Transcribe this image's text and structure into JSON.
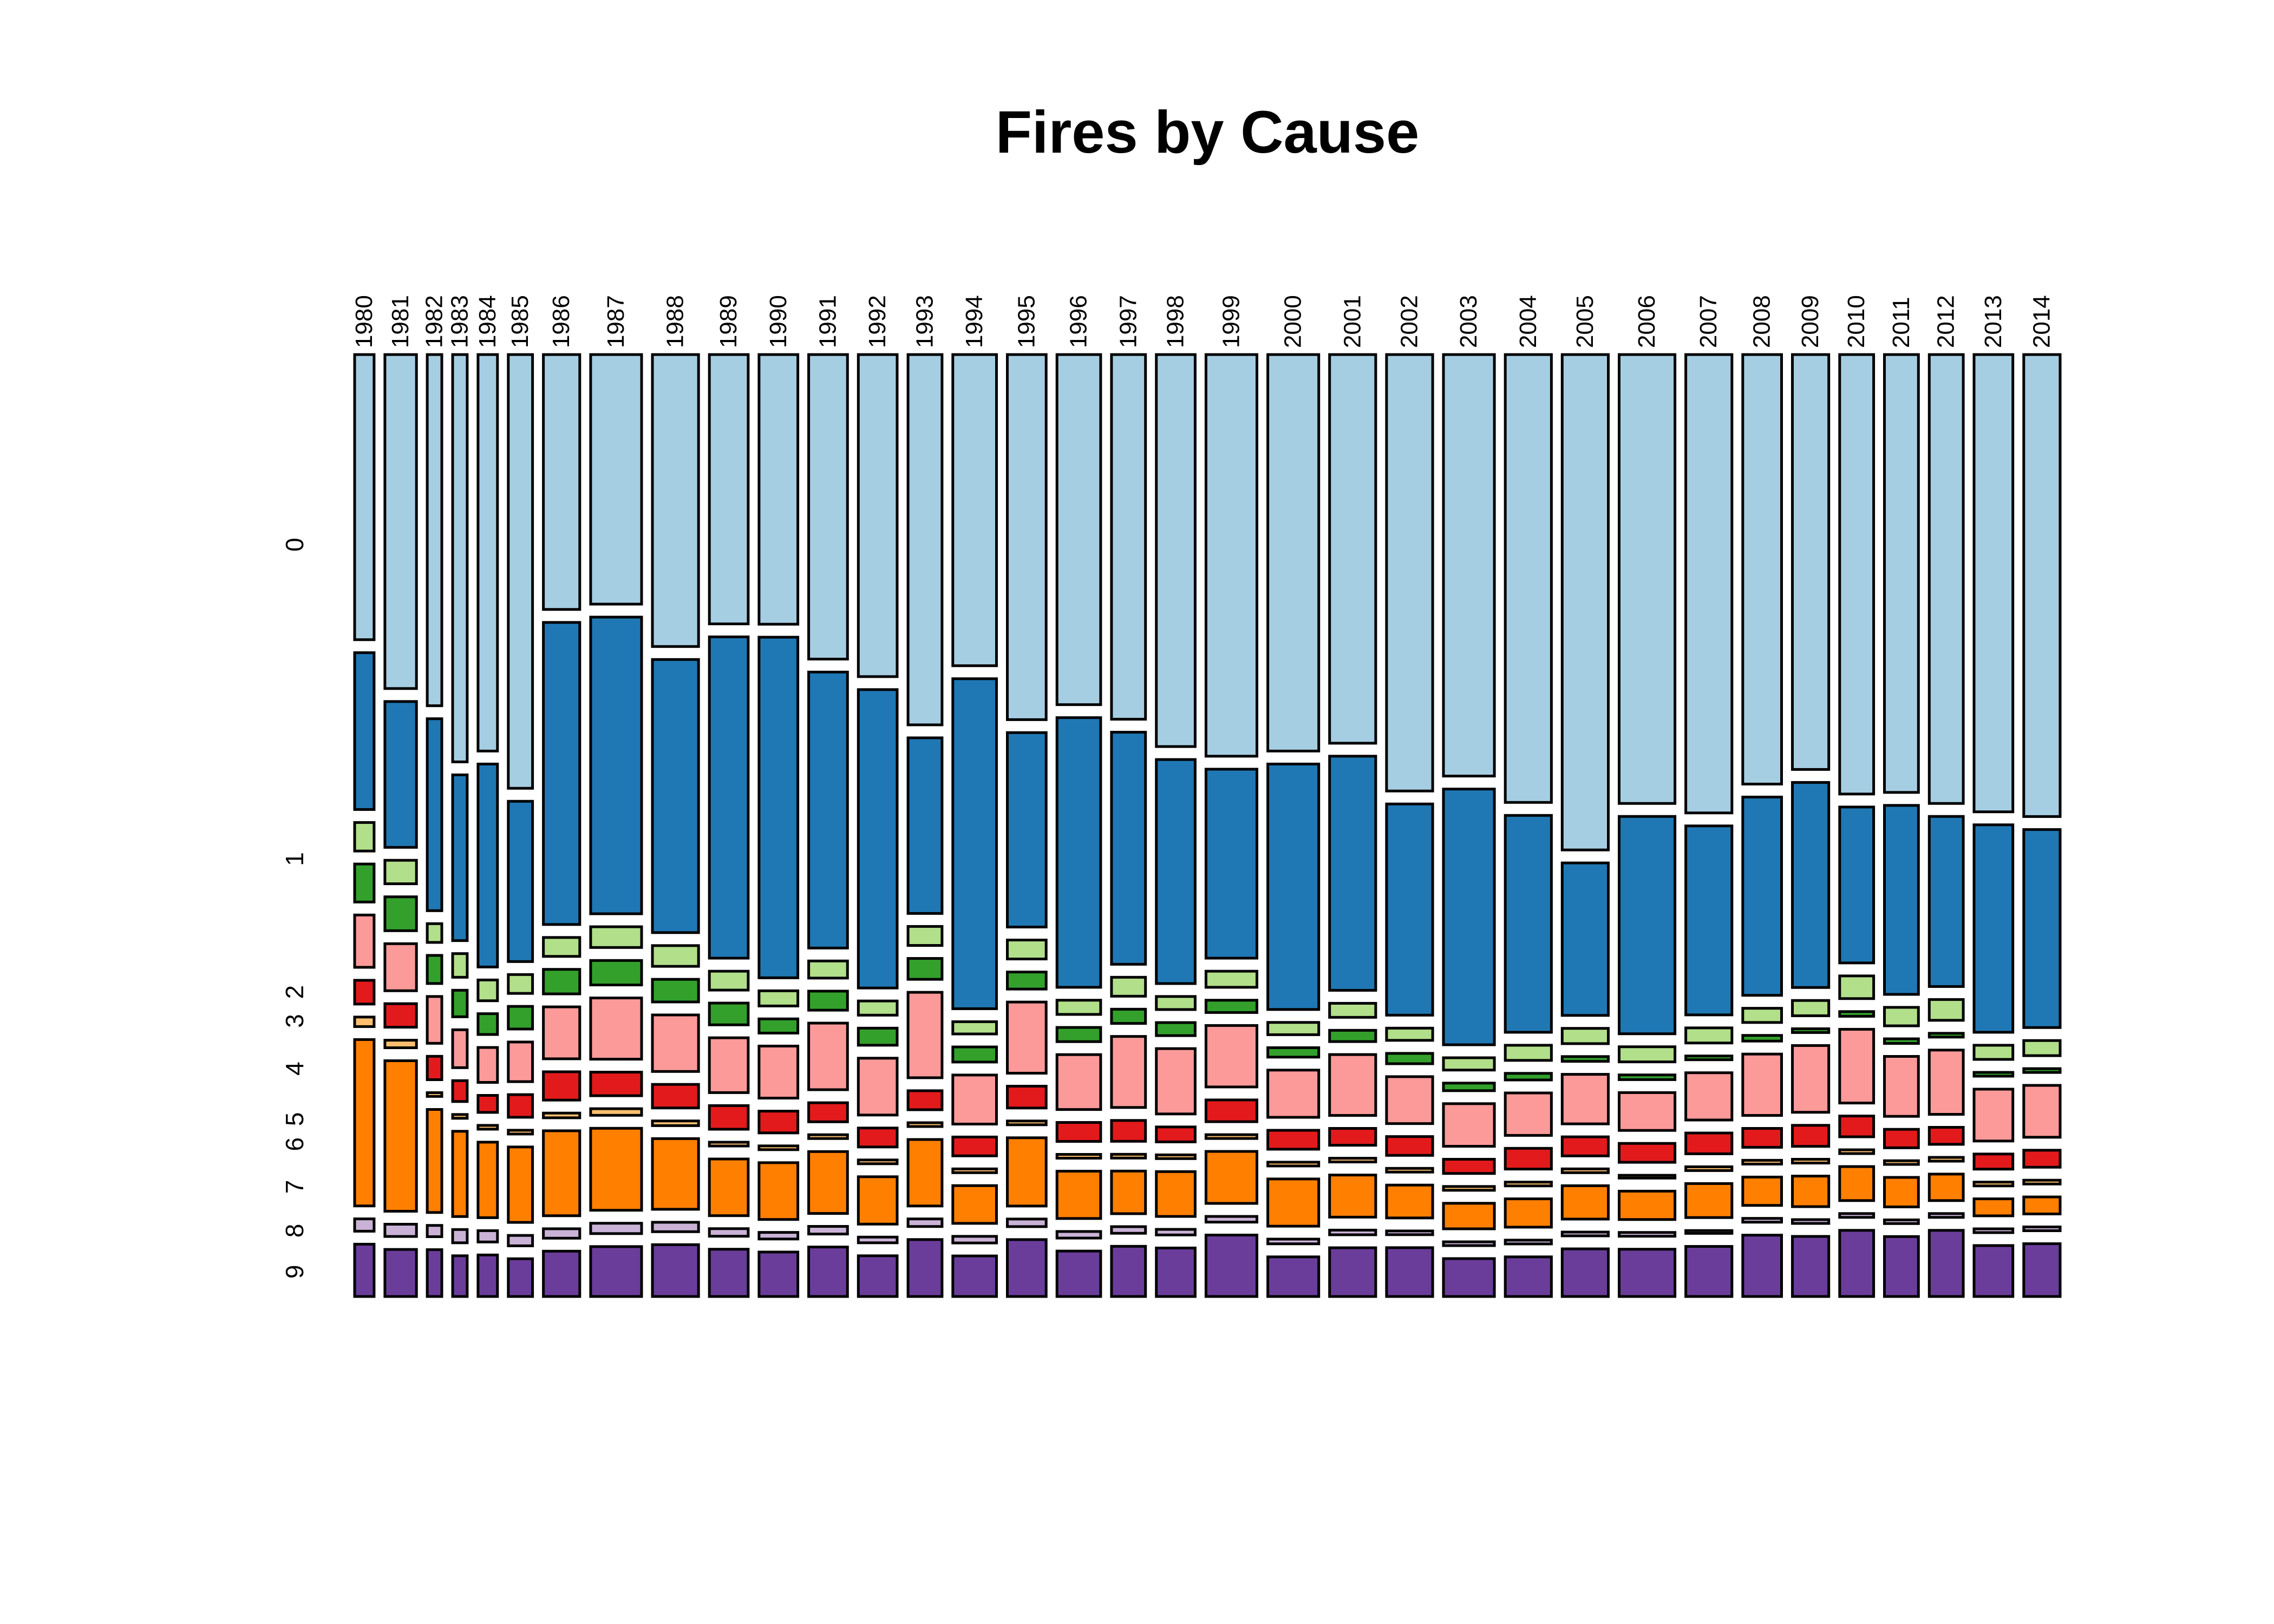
{
  "chart_data": {
    "type": "mosaic",
    "title": "Fires by Cause",
    "categories": [
      "1980",
      "1981",
      "1982",
      "1983",
      "1984",
      "1985",
      "1986",
      "1987",
      "1988",
      "1989",
      "1990",
      "1991",
      "1992",
      "1993",
      "1994",
      "1995",
      "1996",
      "1997",
      "1998",
      "1999",
      "2000",
      "2001",
      "2002",
      "2003",
      "2004",
      "2005",
      "2006",
      "2007",
      "2008",
      "2009",
      "2010",
      "2011",
      "2012",
      "2013",
      "2014"
    ],
    "column_widths": [
      0.8,
      1.3,
      0.6,
      0.6,
      0.8,
      1.0,
      1.5,
      2.1,
      1.9,
      1.6,
      1.6,
      1.6,
      1.6,
      1.4,
      1.8,
      1.6,
      1.8,
      1.4,
      1.6,
      2.1,
      2.1,
      1.9,
      1.9,
      2.1,
      1.9,
      1.9,
      2.3,
      1.9,
      1.6,
      1.5,
      1.4,
      1.4,
      1.4,
      1.6,
      1.5
    ],
    "series": [
      {
        "name": "0",
        "color": "#a6cee3",
        "values": [
          0.3,
          0.355,
          0.375,
          0.43,
          0.42,
          0.46,
          0.27,
          0.265,
          0.31,
          0.285,
          0.285,
          0.32,
          0.34,
          0.39,
          0.33,
          0.385,
          0.37,
          0.385,
          0.42,
          0.425,
          0.42,
          0.415,
          0.465,
          0.445,
          0.475,
          0.52,
          0.475,
          0.485,
          0.455,
          0.435,
          0.465,
          0.475,
          0.475,
          0.485,
          0.49
        ]
      },
      {
        "name": "1",
        "color": "#1f78b4",
        "values": [
          0.165,
          0.155,
          0.205,
          0.175,
          0.215,
          0.17,
          0.32,
          0.315,
          0.29,
          0.34,
          0.36,
          0.29,
          0.315,
          0.185,
          0.35,
          0.205,
          0.285,
          0.245,
          0.24,
          0.2,
          0.26,
          0.25,
          0.225,
          0.27,
          0.23,
          0.16,
          0.23,
          0.2,
          0.21,
          0.215,
          0.165,
          0.205,
          0.18,
          0.22,
          0.21
        ]
      },
      {
        "name": "2",
        "color": "#b2df8a",
        "values": [
          0.03,
          0.025,
          0.02,
          0.025,
          0.022,
          0.02,
          0.02,
          0.022,
          0.022,
          0.02,
          0.016,
          0.018,
          0.015,
          0.02,
          0.013,
          0.02,
          0.015,
          0.02,
          0.014,
          0.017,
          0.013,
          0.015,
          0.013,
          0.013,
          0.016,
          0.016,
          0.016,
          0.016,
          0.015,
          0.016,
          0.024,
          0.02,
          0.022,
          0.015,
          0.016
        ]
      },
      {
        "name": "3",
        "color": "#33a02c",
        "values": [
          0.04,
          0.036,
          0.03,
          0.028,
          0.022,
          0.024,
          0.026,
          0.026,
          0.024,
          0.023,
          0.015,
          0.02,
          0.018,
          0.022,
          0.016,
          0.018,
          0.015,
          0.015,
          0.014,
          0.013,
          0.01,
          0.012,
          0.011,
          0.008,
          0.007,
          0.005,
          0.005,
          0.004,
          0.006,
          0.004,
          0.005,
          0.005,
          0.004,
          0.004,
          0.004
        ]
      },
      {
        "name": "4",
        "color": "#fb9a99",
        "values": [
          0.055,
          0.05,
          0.05,
          0.04,
          0.037,
          0.042,
          0.055,
          0.065,
          0.06,
          0.058,
          0.055,
          0.07,
          0.06,
          0.09,
          0.052,
          0.075,
          0.058,
          0.075,
          0.07,
          0.065,
          0.05,
          0.065,
          0.05,
          0.045,
          0.045,
          0.052,
          0.04,
          0.05,
          0.065,
          0.07,
          0.078,
          0.065,
          0.068,
          0.055,
          0.055
        ]
      },
      {
        "name": "5",
        "color": "#e31a1c",
        "values": [
          0.025,
          0.025,
          0.025,
          0.022,
          0.018,
          0.024,
          0.03,
          0.025,
          0.025,
          0.025,
          0.023,
          0.02,
          0.02,
          0.02,
          0.02,
          0.023,
          0.02,
          0.022,
          0.016,
          0.023,
          0.02,
          0.018,
          0.02,
          0.015,
          0.022,
          0.02,
          0.02,
          0.022,
          0.02,
          0.022,
          0.022,
          0.02,
          0.018,
          0.016,
          0.018
        ]
      },
      {
        "name": "6",
        "color": "#fdbf6f",
        "values": [
          0.01,
          0.008,
          0.004,
          0.004,
          0.004,
          0.004,
          0.005,
          0.007,
          0.005,
          0.004,
          0.004,
          0.004,
          0.004,
          0.004,
          0.004,
          0.004,
          0.004,
          0.004,
          0.004,
          0.004,
          0.004,
          0.004,
          0.004,
          0.004,
          0.004,
          0.004,
          0.003,
          0.004,
          0.004,
          0.004,
          0.004,
          0.004,
          0.004,
          0.004,
          0.004
        ]
      },
      {
        "name": "7",
        "color": "#ff7f00",
        "values": [
          0.175,
          0.16,
          0.11,
          0.09,
          0.08,
          0.08,
          0.09,
          0.087,
          0.075,
          0.06,
          0.06,
          0.065,
          0.05,
          0.07,
          0.04,
          0.072,
          0.05,
          0.045,
          0.048,
          0.055,
          0.05,
          0.045,
          0.035,
          0.027,
          0.03,
          0.035,
          0.03,
          0.036,
          0.03,
          0.032,
          0.036,
          0.032,
          0.028,
          0.018,
          0.018
        ]
      },
      {
        "name": "8",
        "color": "#cab2d6",
        "values": [
          0.013,
          0.013,
          0.012,
          0.014,
          0.012,
          0.011,
          0.01,
          0.011,
          0.01,
          0.008,
          0.007,
          0.008,
          0.006,
          0.008,
          0.007,
          0.008,
          0.007,
          0.007,
          0.006,
          0.006,
          0.005,
          0.005,
          0.004,
          0.004,
          0.004,
          0.004,
          0.004,
          0.003,
          0.004,
          0.004,
          0.004,
          0.004,
          0.004,
          0.004,
          0.004
        ]
      },
      {
        "name": "9",
        "color": "#6a3d9a",
        "values": [
          0.055,
          0.05,
          0.05,
          0.043,
          0.044,
          0.04,
          0.048,
          0.053,
          0.055,
          0.05,
          0.047,
          0.052,
          0.043,
          0.06,
          0.043,
          0.06,
          0.048,
          0.053,
          0.052,
          0.065,
          0.042,
          0.052,
          0.052,
          0.04,
          0.042,
          0.05,
          0.05,
          0.053,
          0.065,
          0.063,
          0.07,
          0.065,
          0.07,
          0.054,
          0.056
        ]
      }
    ],
    "xlabel": "",
    "ylabel": ""
  }
}
